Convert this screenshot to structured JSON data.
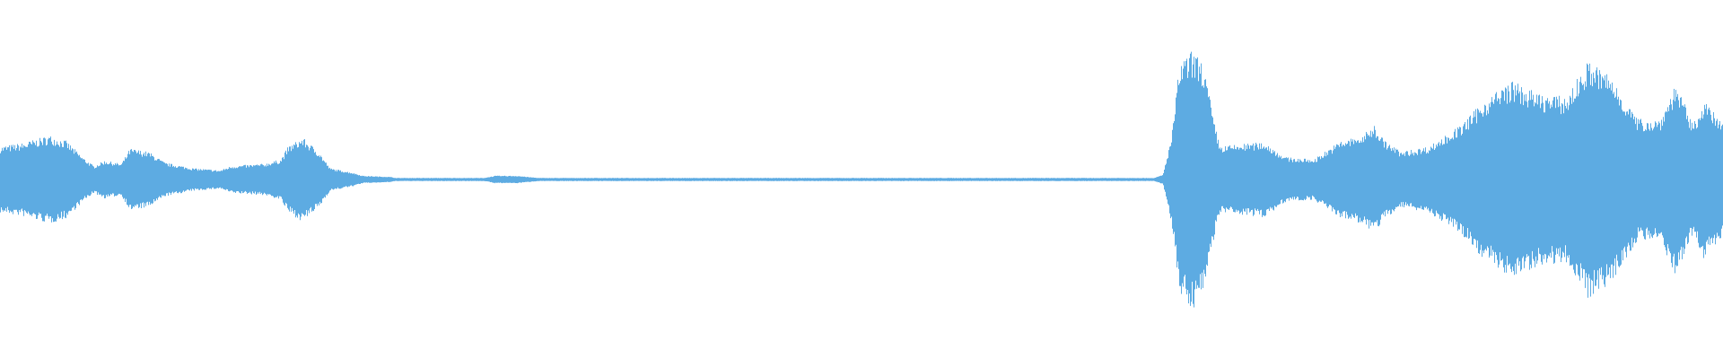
{
  "waveform": {
    "name": "audio-waveform",
    "color": "#5dabe2",
    "background": "#ffffff"
  }
}
